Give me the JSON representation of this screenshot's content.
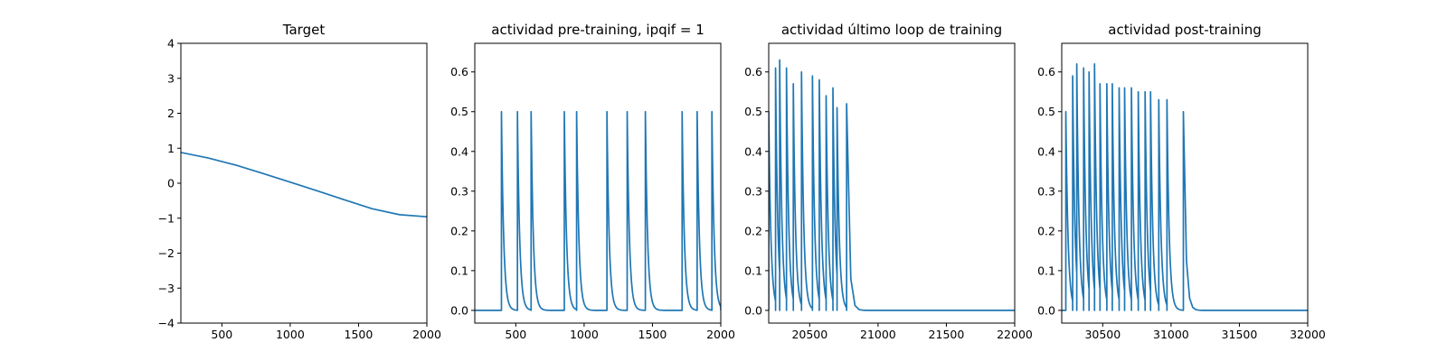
{
  "chart_data": [
    {
      "type": "line",
      "title": "Target",
      "xlim": [
        200,
        2000
      ],
      "ylim": [
        -4,
        4
      ],
      "xticks": [
        500,
        1000,
        1500,
        2000
      ],
      "yticks": [
        -4,
        -3,
        -2,
        -1,
        0,
        1,
        2,
        3,
        4
      ],
      "color": "#1f77b4",
      "curve": "cosine",
      "x": [
        200,
        400,
        600,
        800,
        1000,
        1200,
        1400,
        1600,
        1800,
        2000
      ],
      "y": [
        0.88,
        0.72,
        0.52,
        0.28,
        0.03,
        -0.22,
        -0.48,
        -0.73,
        -0.9,
        -0.96
      ]
    },
    {
      "type": "line",
      "title": "actividad pre-training, ipqif = 1",
      "xlim": [
        200,
        2000
      ],
      "ylim": [
        -0.032,
        0.672
      ],
      "xticks": [
        500,
        1000,
        1500,
        2000
      ],
      "yticks": [
        0.0,
        0.1,
        0.2,
        0.3,
        0.4,
        0.5,
        0.6
      ],
      "color": "#1f77b4",
      "baseline": 0.0,
      "spikes": [
        {
          "t": 395,
          "h": 0.5
        },
        {
          "t": 512,
          "h": 0.5
        },
        {
          "t": 612,
          "h": 0.5
        },
        {
          "t": 855,
          "h": 0.5
        },
        {
          "t": 945,
          "h": 0.5
        },
        {
          "t": 1167,
          "h": 0.5
        },
        {
          "t": 1315,
          "h": 0.5
        },
        {
          "t": 1448,
          "h": 0.5
        },
        {
          "t": 1717,
          "h": 0.5
        },
        {
          "t": 1827,
          "h": 0.5
        },
        {
          "t": 1935,
          "h": 0.5
        }
      ]
    },
    {
      "type": "line",
      "title": "actividad último loop de training",
      "xlim": [
        20200,
        22000
      ],
      "ylim": [
        -0.032,
        0.672
      ],
      "xticks": [
        20500,
        21000,
        21500,
        22000
      ],
      "yticks": [
        0.0,
        0.1,
        0.2,
        0.3,
        0.4,
        0.5,
        0.6
      ],
      "color": "#1f77b4",
      "baseline": 0.0,
      "spikes": [
        {
          "t": 20200,
          "h": 0.5
        },
        {
          "t": 20250,
          "h": 0.61
        },
        {
          "t": 20280,
          "h": 0.63
        },
        {
          "t": 20330,
          "h": 0.61
        },
        {
          "t": 20380,
          "h": 0.57
        },
        {
          "t": 20440,
          "h": 0.6
        },
        {
          "t": 20520,
          "h": 0.59
        },
        {
          "t": 20570,
          "h": 0.58
        },
        {
          "t": 20620,
          "h": 0.54
        },
        {
          "t": 20670,
          "h": 0.56
        },
        {
          "t": 20700,
          "h": 0.51
        },
        {
          "t": 20770,
          "h": 0.52
        }
      ]
    },
    {
      "type": "line",
      "title": "actividad post-training",
      "xlim": [
        30200,
        32000
      ],
      "ylim": [
        -0.032,
        0.672
      ],
      "xticks": [
        30500,
        31000,
        31500,
        32000
      ],
      "yticks": [
        0.0,
        0.1,
        0.2,
        0.3,
        0.4,
        0.5,
        0.6
      ],
      "color": "#1f77b4",
      "baseline": 0.0,
      "spikes": [
        {
          "t": 30230,
          "h": 0.5
        },
        {
          "t": 30280,
          "h": 0.59
        },
        {
          "t": 30310,
          "h": 0.62
        },
        {
          "t": 30360,
          "h": 0.61
        },
        {
          "t": 30400,
          "h": 0.6
        },
        {
          "t": 30440,
          "h": 0.62
        },
        {
          "t": 30480,
          "h": 0.57
        },
        {
          "t": 30530,
          "h": 0.57
        },
        {
          "t": 30570,
          "h": 0.57
        },
        {
          "t": 30620,
          "h": 0.56
        },
        {
          "t": 30660,
          "h": 0.56
        },
        {
          "t": 30710,
          "h": 0.56
        },
        {
          "t": 30760,
          "h": 0.55
        },
        {
          "t": 30810,
          "h": 0.55
        },
        {
          "t": 30850,
          "h": 0.55
        },
        {
          "t": 30910,
          "h": 0.53
        },
        {
          "t": 30970,
          "h": 0.53
        },
        {
          "t": 31090,
          "h": 0.5
        }
      ]
    }
  ]
}
